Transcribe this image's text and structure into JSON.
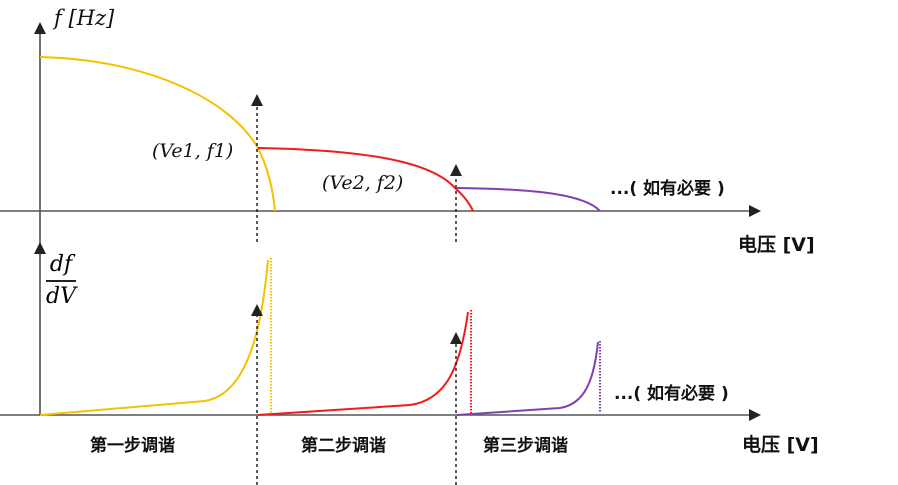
{
  "colors": {
    "step1": "#f5c000",
    "step2": "#f01c1c",
    "step3": "#8040b0",
    "axis": "#444444"
  },
  "top": {
    "ylabel": "f [Hz]",
    "point1": "(Ve1, f1)",
    "point2": "(Ve2, f2)",
    "note": "...( 如有必要 )",
    "xlabel": "电压 [V]"
  },
  "bottom": {
    "ylabel_num": "df",
    "ylabel_den": "dV",
    "note": "...( 如有必要 )",
    "xlabel": "电压 [V]",
    "steps": [
      "第一步调谐",
      "第二步调谐",
      "第三步调谐"
    ]
  }
}
